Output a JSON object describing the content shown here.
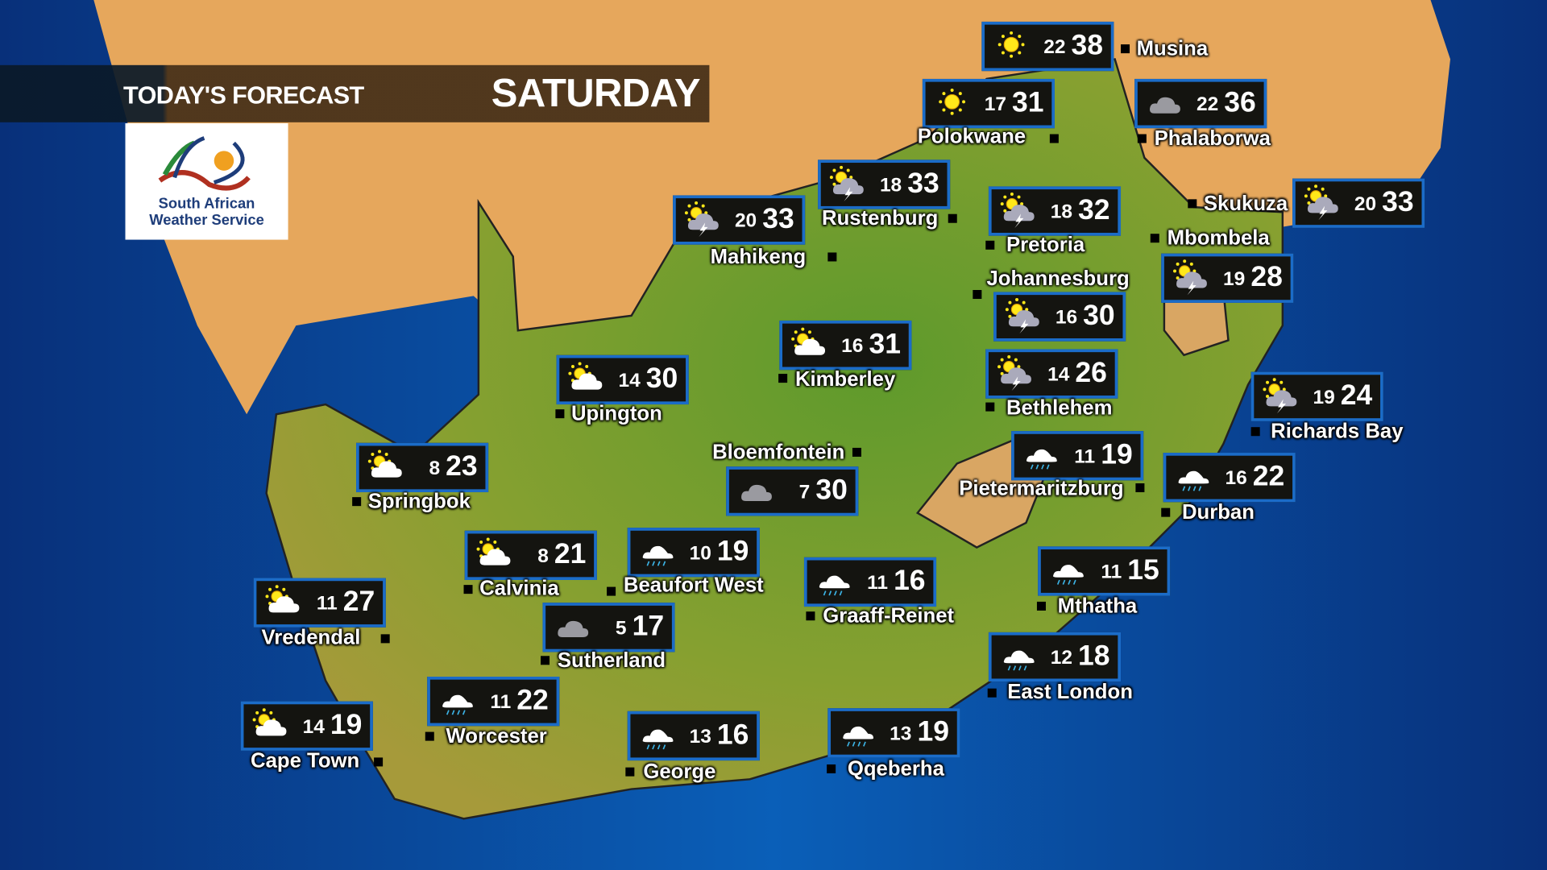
{
  "header": {
    "title": "TODAY'S FORECAST",
    "day": "SATURDAY"
  },
  "logo": {
    "line1": "South African",
    "line2": "Weather Service"
  },
  "colors": {
    "box_border": "#1b6cc8",
    "box_bg": "#141410",
    "ocean": "#0a64c0",
    "land_sa": "#7a9a2a",
    "land_other": "#e8a85a"
  },
  "cities": [
    {
      "name": "Musina",
      "icon": "sunny",
      "min": "22",
      "max": "38"
    },
    {
      "name": "Polokwane",
      "icon": "sunny",
      "min": "17",
      "max": "31"
    },
    {
      "name": "Phalaborwa",
      "icon": "cloudy",
      "min": "22",
      "max": "36"
    },
    {
      "name": "Rustenburg",
      "icon": "thunderstorm",
      "min": "18",
      "max": "33"
    },
    {
      "name": "Pretoria",
      "icon": "thunderstorm",
      "min": "18",
      "max": "32"
    },
    {
      "name": "Skukuza",
      "icon": "thunderstorm",
      "min": "20",
      "max": "33"
    },
    {
      "name": "Mbombela",
      "icon": "thunderstorm",
      "min": "19",
      "max": "28"
    },
    {
      "name": "Mahikeng",
      "icon": "thunderstorm",
      "min": "20",
      "max": "33"
    },
    {
      "name": "Johannesburg",
      "icon": "thunderstorm",
      "min": "16",
      "max": "30"
    },
    {
      "name": "Kimberley",
      "icon": "partly-cloudy",
      "min": "16",
      "max": "31"
    },
    {
      "name": "Upington",
      "icon": "partly-cloudy",
      "min": "14",
      "max": "30"
    },
    {
      "name": "Bethlehem",
      "icon": "thunderstorm",
      "min": "14",
      "max": "26"
    },
    {
      "name": "Richards Bay",
      "icon": "thunderstorm",
      "min": "19",
      "max": "24"
    },
    {
      "name": "Springbok",
      "icon": "partly-cloudy",
      "min": "8",
      "max": "23"
    },
    {
      "name": "Bloemfontein",
      "icon": "cloudy",
      "min": "7",
      "max": "30"
    },
    {
      "name": "Pietermaritzburg",
      "icon": "rain",
      "min": "11",
      "max": "19"
    },
    {
      "name": "Durban",
      "icon": "rain",
      "min": "16",
      "max": "22"
    },
    {
      "name": "Calvinia",
      "icon": "partly-cloudy",
      "min": "8",
      "max": "21"
    },
    {
      "name": "Beaufort West",
      "icon": "rain",
      "min": "10",
      "max": "19"
    },
    {
      "name": "Graaff-Reinet",
      "icon": "rain",
      "min": "11",
      "max": "16"
    },
    {
      "name": "Mthatha",
      "icon": "rain",
      "min": "11",
      "max": "15"
    },
    {
      "name": "Vredendal",
      "icon": "partly-cloudy",
      "min": "11",
      "max": "27"
    },
    {
      "name": "Sutherland",
      "icon": "cloudy",
      "min": "5",
      "max": "17"
    },
    {
      "name": "East London",
      "icon": "rain",
      "min": "12",
      "max": "18"
    },
    {
      "name": "Worcester",
      "icon": "rain",
      "min": "11",
      "max": "22"
    },
    {
      "name": "Cape Town",
      "icon": "partly-cloudy",
      "min": "14",
      "max": "19"
    },
    {
      "name": "George",
      "icon": "rain",
      "min": "13",
      "max": "16"
    },
    {
      "name": "Qqeberha",
      "icon": "rain",
      "min": "13",
      "max": "19"
    }
  ]
}
